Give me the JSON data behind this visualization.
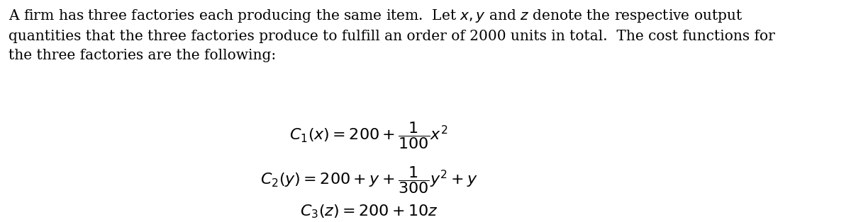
{
  "background_color": "#ffffff",
  "text_color": "#000000",
  "paragraph": "A firm has three factories each producing the same item.  Let $x, y$ and $z$ denote the respective output\nquantities that the three factories produce to fulfill an order of 2000 units in total.  The cost functions for\nthe three factories are the following:",
  "eq1": "$C_1(x) = 200 + \\dfrac{1}{100}x^2$",
  "eq2": "$C_2(y) = 200 + y + \\dfrac{1}{300}y^2 + y$",
  "eq3": "$C_3(z) = 200 + 10z$",
  "figsize": [
    12.0,
    3.14
  ],
  "dpi": 100,
  "font_size_text": 14.5,
  "font_size_eq": 16
}
